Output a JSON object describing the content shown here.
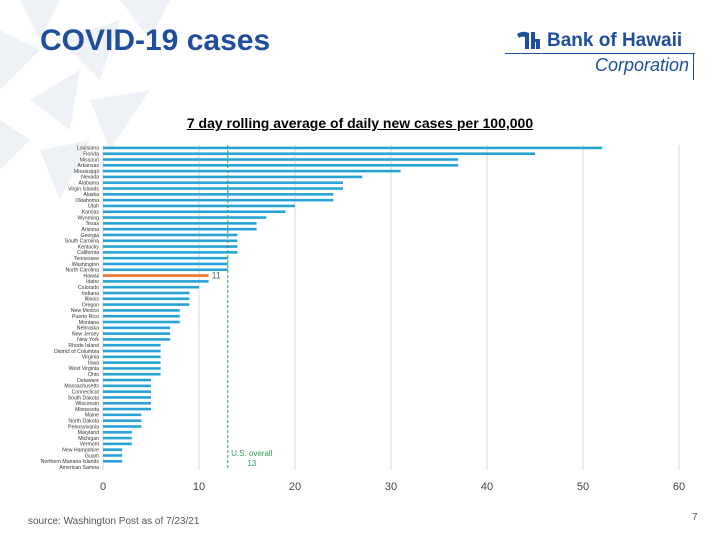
{
  "slide": {
    "title": "COVID-19 cases",
    "source": "source: Washington Post as of 7/23/21",
    "page_number": "7"
  },
  "logo": {
    "name": "Bank of Hawaii",
    "sub": "Corporation",
    "icon": "bank-of-hawaii-logo-icon",
    "color": "#1f4e9c"
  },
  "chart_data": {
    "type": "bar",
    "orientation": "horizontal",
    "title": "7 day rolling average of daily new cases per 100,000",
    "xlabel": "",
    "ylabel": "",
    "xlim": [
      0,
      60
    ],
    "xticks": [
      "0",
      "10",
      "20",
      "30",
      "40",
      "50",
      "60"
    ],
    "grid": true,
    "bar_color": "#29a3d6",
    "highlight_color": "#e8772e",
    "highlight_category": "Hawaii",
    "highlight_label": "11",
    "reference_line": {
      "value": 13,
      "color": "#2e9e5b",
      "label_line1": "U.S. overall",
      "label_line2": "13"
    },
    "categories": [
      "Louisiana",
      "Florida",
      "Missouri",
      "Arkansas",
      "Mississippi",
      "Nevada",
      "Alabama",
      "Virgin Islands",
      "Alaska",
      "Oklahoma",
      "Utah",
      "Kansas",
      "Wyoming",
      "Texas",
      "Arizona",
      "Georgia",
      "South Carolina",
      "Kentucky",
      "California",
      "Tennessee",
      "Washington",
      "North Carolina",
      "Hawaii",
      "Idaho",
      "Colorado",
      "Indiana",
      "Illinois",
      "Oregon",
      "New Mexico",
      "Puerto Rico",
      "Montana",
      "Nebraska",
      "New Jersey",
      "New York",
      "Rhode Island",
      "District of Columbia",
      "Virginia",
      "Iowa",
      "West Virginia",
      "Ohio",
      "Delaware",
      "Massachusetts",
      "Connecticut",
      "South Dakota",
      "Wisconsin",
      "Minnesota",
      "Maine",
      "North Dakota",
      "Pennsylvania",
      "Maryland",
      "Michigan",
      "Vermont",
      "New Hampshire",
      "Guam",
      "Northern Mariana Islands",
      "American Samoa"
    ],
    "values": [
      52,
      45,
      37,
      37,
      31,
      27,
      25,
      25,
      24,
      24,
      20,
      19,
      17,
      16,
      16,
      14,
      14,
      14,
      14,
      13,
      13,
      13,
      11,
      11,
      10,
      9,
      9,
      9,
      8,
      8,
      8,
      7,
      7,
      7,
      6,
      6,
      6,
      6,
      6,
      6,
      5,
      5,
      5,
      5,
      5,
      5,
      4,
      4,
      4,
      3,
      3,
      3,
      2,
      2,
      2,
      0
    ]
  }
}
